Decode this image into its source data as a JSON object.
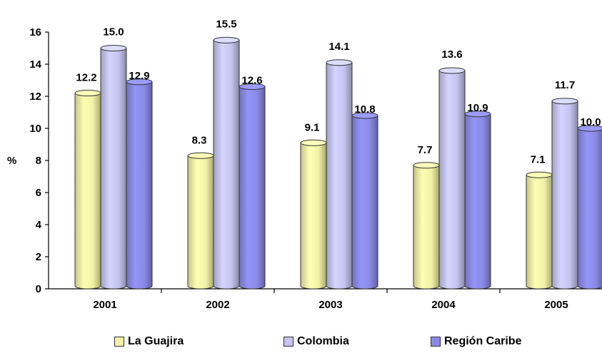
{
  "chart_data": {
    "type": "bar",
    "title": "",
    "xlabel": "",
    "ylabel": "%",
    "ylim": [
      0,
      16
    ],
    "yticks": [
      0,
      2,
      4,
      6,
      8,
      10,
      12,
      14,
      16
    ],
    "categories": [
      "2001",
      "2002",
      "2003",
      "2004",
      "2005"
    ],
    "series": [
      {
        "name": "La Guajira",
        "values": [
          12.2,
          8.3,
          9.1,
          7.7,
          7.1
        ],
        "labels": [
          "12.2",
          "8.3",
          "9.1",
          "7.7",
          "7.1"
        ],
        "color": "#f2f2a6"
      },
      {
        "name": "Colombia",
        "values": [
          15.0,
          15.5,
          14.1,
          13.6,
          11.7
        ],
        "labels": [
          "15.0",
          "15.5",
          "14.1",
          "13.6",
          "11.7"
        ],
        "color": "#c4c4ee"
      },
      {
        "name": "Región Caribe",
        "values": [
          12.9,
          12.6,
          10.8,
          10.9,
          10.0
        ],
        "labels": [
          "12.9",
          "12.6",
          "10.8",
          "10.9",
          "10.0"
        ],
        "color": "#8a8ae6"
      }
    ],
    "legend_position": "bottom",
    "grid": false
  }
}
